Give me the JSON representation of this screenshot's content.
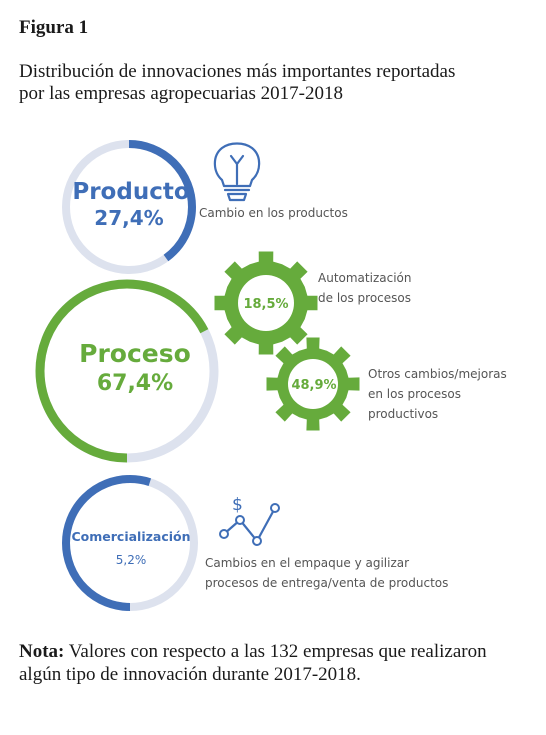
{
  "figure": {
    "label": "Figura 1",
    "title_line1": "Distribución de innovaciones más importantes reportadas",
    "title_line2": "por las empresas agropecuarias 2017-2018",
    "note_label": "Nota:",
    "note_line1": " Valores con respecto a las 132 empresas que realizaron",
    "note_line2": "algún tipo de innovación durante 2017-2018."
  },
  "colors": {
    "blue": "#3f6eb7",
    "green": "#66ab3c",
    "track": "#dde2ee",
    "text_gray": "#555555"
  },
  "icons": {
    "producto": "lightbulb-icon",
    "proceso": "gear-icon",
    "comercializacion": "dollar-trend-icon"
  },
  "chart_data": {
    "type": "pie",
    "series": [
      {
        "name": "Producto",
        "percent_label": "27,4%",
        "value": 27.4,
        "color": "#3f6eb7",
        "description": [
          "Cambio en los productos"
        ]
      },
      {
        "name": "Proceso",
        "percent_label": "67,4%",
        "value": 67.4,
        "color": "#66ab3c",
        "description": [],
        "sub": [
          {
            "percent_label": "18,5%",
            "value": 18.5,
            "description": [
              "Automatización",
              "de los procesos"
            ]
          },
          {
            "percent_label": "48,9%",
            "value": 48.9,
            "description": [
              "Otros cambios/mejoras",
              "en los procesos",
              "productivos"
            ]
          }
        ]
      },
      {
        "name": "Comercialización",
        "percent_label": "5,2%",
        "value": 5.2,
        "color": "#3f6eb7",
        "description": [
          "Cambios en el empaque y agilizar",
          "procesos de entrega/venta de productos"
        ]
      }
    ]
  }
}
